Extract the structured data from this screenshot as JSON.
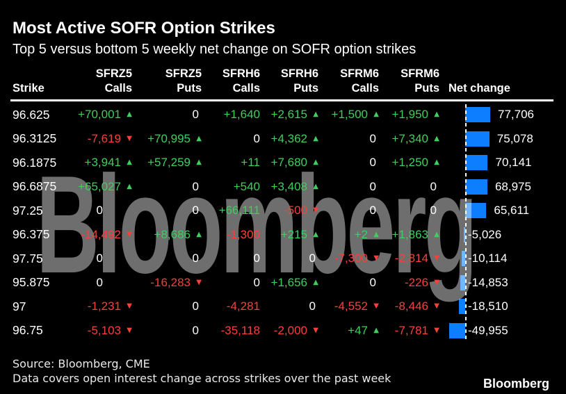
{
  "title": "Most Active SOFR Option Strikes",
  "subtitle": "Top 5 versus bottom 5 weekly net change on SOFR option strikes",
  "watermark": "Bloomberg",
  "colors": {
    "green": "#3ecf5e",
    "red": "#f5413b",
    "bar_blue": "#0d7eff",
    "background": "#000000"
  },
  "columns": [
    {
      "top": "",
      "bottom": "Strike"
    },
    {
      "top": "SFRZ5",
      "bottom": "Calls"
    },
    {
      "top": "SFRZ5",
      "bottom": "Puts"
    },
    {
      "top": "SFRH6",
      "bottom": "Calls"
    },
    {
      "top": "SFRH6",
      "bottom": "Puts"
    },
    {
      "top": "SFRM6",
      "bottom": "Calls"
    },
    {
      "top": "SFRM6",
      "bottom": "Puts"
    },
    {
      "top": "",
      "bottom": "Net change"
    }
  ],
  "rows": [
    {
      "strike": "96.625",
      "cells": [
        {
          "v": "+70,001",
          "d": "up"
        },
        {
          "v": "0"
        },
        {
          "v": "+1,640"
        },
        {
          "v": "+2,615",
          "d": "up"
        },
        {
          "v": "+1,500",
          "d": "up"
        },
        {
          "v": "+1,950",
          "d": "up"
        }
      ],
      "net": 77706,
      "net_label": "77,706"
    },
    {
      "strike": "96.3125",
      "cells": [
        {
          "v": "-7,619",
          "d": "down"
        },
        {
          "v": "+70,995",
          "d": "up"
        },
        {
          "v": "0"
        },
        {
          "v": "+4,362",
          "d": "up"
        },
        {
          "v": "0"
        },
        {
          "v": "+7,340",
          "d": "up"
        }
      ],
      "net": 75078,
      "net_label": "75,078"
    },
    {
      "strike": "96.1875",
      "cells": [
        {
          "v": "+3,941",
          "d": "up"
        },
        {
          "v": "+57,259",
          "d": "up"
        },
        {
          "v": "+11"
        },
        {
          "v": "+7,680",
          "d": "up"
        },
        {
          "v": "0"
        },
        {
          "v": "+1,250",
          "d": "up"
        }
      ],
      "net": 70141,
      "net_label": "70,141"
    },
    {
      "strike": "96.6875",
      "cells": [
        {
          "v": "+65,027",
          "d": "up"
        },
        {
          "v": "0"
        },
        {
          "v": "+540"
        },
        {
          "v": "+3,408",
          "d": "up"
        },
        {
          "v": "0"
        },
        {
          "v": "0"
        }
      ],
      "net": 68975,
      "net_label": "68,975"
    },
    {
      "strike": "97.25",
      "cells": [
        {
          "v": "0"
        },
        {
          "v": "0"
        },
        {
          "v": "+66,111"
        },
        {
          "v": "-500",
          "d": "down"
        },
        {
          "v": "0"
        },
        {
          "v": "0"
        }
      ],
      "net": 65611,
      "net_label": "65,611"
    },
    {
      "strike": "96.375",
      "cells": [
        {
          "v": "-14,492",
          "d": "down"
        },
        {
          "v": "+8,686",
          "d": "up"
        },
        {
          "v": "-1,300"
        },
        {
          "v": "+215",
          "d": "up"
        },
        {
          "v": "+2",
          "d": "up"
        },
        {
          "v": "+1,863",
          "d": "up"
        }
      ],
      "net": -5026,
      "net_label": "-5,026"
    },
    {
      "strike": "97.75",
      "cells": [
        {
          "v": "0"
        },
        {
          "v": "0"
        },
        {
          "v": "0"
        },
        {
          "v": "0"
        },
        {
          "v": "-7,300",
          "d": "down"
        },
        {
          "v": "-2,814",
          "d": "down"
        }
      ],
      "net": -10114,
      "net_label": "-10,114"
    },
    {
      "strike": "95.875",
      "cells": [
        {
          "v": "0"
        },
        {
          "v": "-16,283",
          "d": "down"
        },
        {
          "v": "0"
        },
        {
          "v": "+1,656",
          "d": "up"
        },
        {
          "v": "0"
        },
        {
          "v": "-226",
          "d": "down"
        }
      ],
      "net": -14853,
      "net_label": "-14,853"
    },
    {
      "strike": "97",
      "cells": [
        {
          "v": "-1,231",
          "d": "down"
        },
        {
          "v": "0"
        },
        {
          "v": "-4,281"
        },
        {
          "v": "0"
        },
        {
          "v": "-4,552",
          "d": "down"
        },
        {
          "v": "-8,446",
          "d": "down"
        }
      ],
      "net": -18510,
      "net_label": "-18,510"
    },
    {
      "strike": "96.75",
      "cells": [
        {
          "v": "-5,103",
          "d": "down"
        },
        {
          "v": "0"
        },
        {
          "v": "-35,118"
        },
        {
          "v": "-2,000",
          "d": "down"
        },
        {
          "v": "+47",
          "d": "up"
        },
        {
          "v": "-7,781",
          "d": "down"
        }
      ],
      "net": -49955,
      "net_label": "-49,955"
    }
  ],
  "footer": {
    "source": "Source: Bloomberg, CME",
    "note": "Data covers open interest change across strikes over the past week",
    "logo": "Bloomberg"
  },
  "chart_data": {
    "type": "table",
    "title": "Most Active SOFR Option Strikes",
    "subtitle": "Top 5 versus bottom 5 weekly net change on SOFR option strikes",
    "columns": [
      "Strike",
      "SFRZ5 Calls",
      "SFRZ5 Puts",
      "SFRH6 Calls",
      "SFRH6 Puts",
      "SFRM6 Calls",
      "SFRM6 Puts",
      "Net change"
    ],
    "rows": [
      [
        "96.625",
        70001,
        0,
        1640,
        2615,
        1500,
        1950,
        77706
      ],
      [
        "96.3125",
        -7619,
        70995,
        0,
        4362,
        0,
        7340,
        75078
      ],
      [
        "96.1875",
        3941,
        57259,
        11,
        7680,
        0,
        1250,
        70141
      ],
      [
        "96.6875",
        65027,
        0,
        540,
        3408,
        0,
        0,
        68975
      ],
      [
        "97.25",
        0,
        0,
        66111,
        -500,
        0,
        0,
        65611
      ],
      [
        "96.375",
        -14492,
        8686,
        -1300,
        215,
        2,
        1863,
        -5026
      ],
      [
        "97.75",
        0,
        0,
        0,
        0,
        -7300,
        -2814,
        -10114
      ],
      [
        "95.875",
        0,
        -16283,
        0,
        1656,
        0,
        -226,
        -14853
      ],
      [
        "97",
        -1231,
        0,
        -4281,
        0,
        -4552,
        -8446,
        -18510
      ],
      [
        "96.75",
        -5103,
        0,
        -35118,
        -2000,
        47,
        -7781,
        -49955
      ]
    ],
    "bar_column": "Net change",
    "bar_type": "bar",
    "bar_color": "#0d7eff",
    "bar_axis_max": 77706,
    "legend": "none",
    "grid": "zero-axis dashed vertical line only"
  }
}
